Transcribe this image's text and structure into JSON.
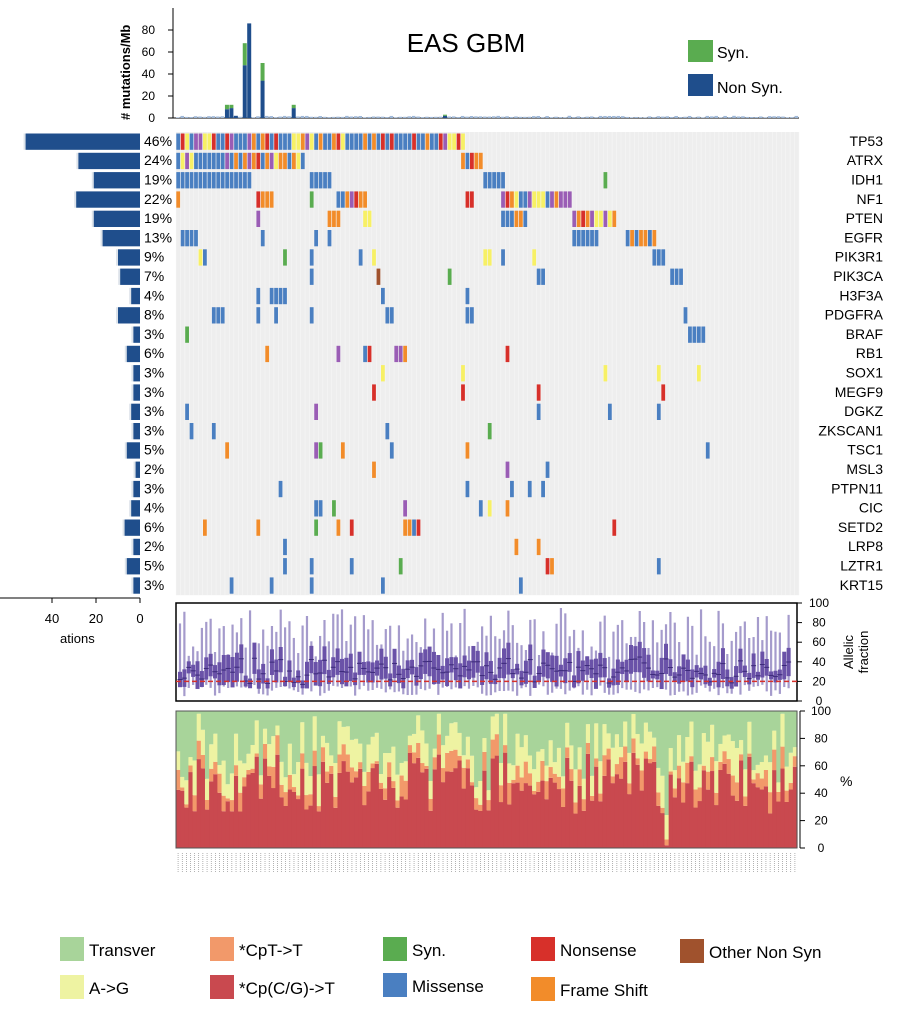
{
  "chart_data": {
    "title": "EAS GBM",
    "type": "oncoplot",
    "mutation_burden": {
      "ylabel": "# mutations/Mb",
      "ticks": [
        0,
        20,
        40,
        60,
        80
      ],
      "ylim": [
        0,
        100
      ],
      "legend": [
        {
          "label": "Syn.",
          "color": "#5aac50"
        },
        {
          "label": "Non Syn.",
          "color": "#1f4e8c"
        }
      ],
      "peaks": [
        {
          "sample": 11,
          "syn": 4,
          "nonsyn": 8
        },
        {
          "sample": 12,
          "syn": 3,
          "nonsyn": 9
        },
        {
          "sample": 13,
          "syn": 0,
          "nonsyn": 2
        },
        {
          "sample": 15,
          "syn": 20,
          "nonsyn": 48
        },
        {
          "sample": 16,
          "syn": 0,
          "nonsyn": 86
        },
        {
          "sample": 19,
          "syn": 16,
          "nonsyn": 34
        },
        {
          "sample": 26,
          "syn": 3,
          "nonsyn": 9
        },
        {
          "sample": 60,
          "syn": 1,
          "nonsyn": 2
        }
      ]
    },
    "genes": [
      {
        "name": "TP53",
        "pct": "46%"
      },
      {
        "name": "ATRX",
        "pct": "24%"
      },
      {
        "name": "IDH1",
        "pct": "19%"
      },
      {
        "name": "NF1",
        "pct": "22%"
      },
      {
        "name": "PTEN",
        "pct": "19%"
      },
      {
        "name": "EGFR",
        "pct": "13%"
      },
      {
        "name": "PIK3R1",
        "pct": "9%"
      },
      {
        "name": "PIK3CA",
        "pct": "7%"
      },
      {
        "name": "H3F3A",
        "pct": "4%"
      },
      {
        "name": "PDGFRA",
        "pct": "8%"
      },
      {
        "name": "BRAF",
        "pct": "3%"
      },
      {
        "name": "RB1",
        "pct": "6%"
      },
      {
        "name": "SOX1",
        "pct": "3%"
      },
      {
        "name": "MEGF9",
        "pct": "3%"
      },
      {
        "name": "DGKZ",
        "pct": "3%"
      },
      {
        "name": "ZKSCAN1",
        "pct": "3%"
      },
      {
        "name": "TSC1",
        "pct": "5%"
      },
      {
        "name": "MSL3",
        "pct": "2%"
      },
      {
        "name": "PTPN11",
        "pct": "3%"
      },
      {
        "name": "CIC",
        "pct": "4%"
      },
      {
        "name": "SETD2",
        "pct": "6%"
      },
      {
        "name": "LRP8",
        "pct": "2%"
      },
      {
        "name": "LZTR1",
        "pct": "5%"
      },
      {
        "name": "KRT15",
        "pct": "3%"
      }
    ],
    "gene_counts": [
      52,
      28,
      21,
      29,
      21,
      17,
      10,
      9,
      4,
      10,
      3,
      6,
      3,
      3,
      4,
      3,
      6,
      2,
      3,
      4,
      7,
      3,
      6,
      3
    ],
    "count_axis": {
      "ticks": [
        40,
        20,
        0
      ],
      "xlabel_partial": "ations",
      "xlim": [
        0,
        60
      ]
    },
    "mutation_type_colors": {
      "Missense": "#4a7fc1",
      "Syn.": "#5aac50",
      "Nonsense": "#d7302a",
      "Frame Shift": "#f28c2a",
      "Other Non Syn": "#a0522d",
      "Splice": "#9a5db5",
      "Inframe": "#f7f065"
    },
    "allelic_fraction": {
      "ylabel_line1": "Allelic",
      "ylabel_line2": "fraction",
      "ticks": [
        0,
        20,
        40,
        60,
        80,
        100
      ],
      "ylim": [
        0,
        100
      ],
      "reference_line": 20
    },
    "spectrum": {
      "ylabel": "%",
      "ticks": [
        0,
        20,
        40,
        60,
        80,
        100
      ],
      "ylim": [
        0,
        100
      ],
      "categories": [
        {
          "label": "Transver",
          "color": "#a8d49a"
        },
        {
          "label": "A->G",
          "color": "#eef3a2"
        },
        {
          "label": "*CpT->T",
          "color": "#f2996a"
        },
        {
          "label": "*Cp(C/G)->T",
          "color": "#c9494f"
        }
      ]
    },
    "legend": [
      {
        "label": "Transver",
        "color": "#a8d49a"
      },
      {
        "label": "*CpT->T",
        "color": "#f2996a"
      },
      {
        "label": "Syn.",
        "color": "#5aac50"
      },
      {
        "label": "Nonsense",
        "color": "#d7302a"
      },
      {
        "label": "Other Non Syn",
        "color": "#a0522d"
      },
      {
        "label": "A->G",
        "color": "#eef3a2"
      },
      {
        "label": "*Cp(C/G)->T",
        "color": "#c9494f"
      },
      {
        "label": "Missense",
        "color": "#4a7fc1"
      },
      {
        "label": "Frame Shift",
        "color": "#f28c2a"
      }
    ]
  }
}
